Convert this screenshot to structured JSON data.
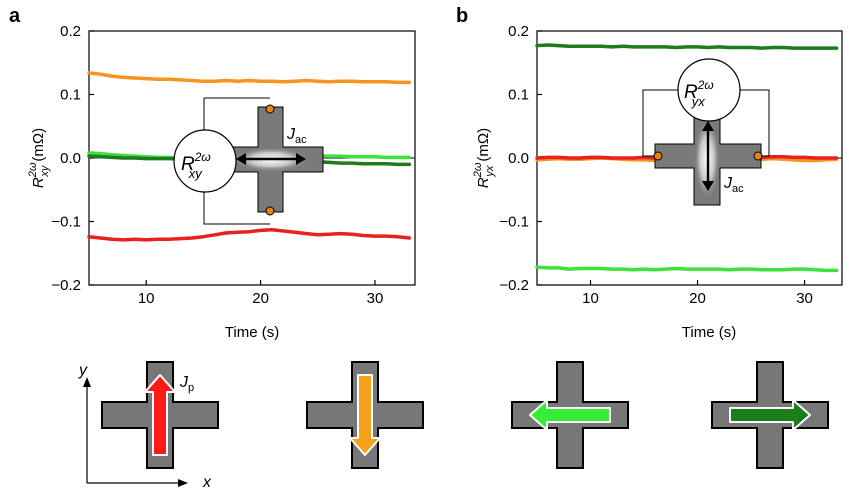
{
  "panel_letters": [
    "a",
    "b"
  ],
  "chart_data": [
    {
      "type": "line",
      "panel": "a",
      "xlabel": "Time (s)",
      "ylabel_main": "R",
      "ylabel_sup": "2ω",
      "ylabel_sub": "xy",
      "ylabel_unit": "(mΩ)",
      "xlim": [
        5,
        33.5
      ],
      "ylim": [
        -0.2,
        0.2
      ],
      "xticks": [
        10,
        20,
        30
      ],
      "yticks": [
        -0.2,
        -0.1,
        0.0,
        0.1,
        0.2
      ],
      "ytick_labels": [
        "−0.2",
        "−0.1",
        "0.0",
        "0.1",
        "0.2"
      ],
      "zero_line": true,
      "inset": {
        "meter_main": "R",
        "meter_sup": "2ω",
        "meter_sub": "xy",
        "current_label_main": "J",
        "current_label_sub": "ac",
        "current_direction": "horizontal"
      },
      "series": [
        {
          "color": "#f7941d",
          "x": [
            5,
            6,
            7,
            8,
            9,
            10,
            11,
            12,
            13,
            14,
            15,
            16,
            17,
            18,
            19,
            20,
            21,
            22,
            23,
            24,
            25,
            26,
            27,
            28,
            29,
            30,
            31,
            32,
            33
          ],
          "values": [
            0.134,
            0.132,
            0.129,
            0.127,
            0.126,
            0.125,
            0.124,
            0.124,
            0.123,
            0.122,
            0.121,
            0.121,
            0.122,
            0.121,
            0.122,
            0.121,
            0.121,
            0.12,
            0.121,
            0.122,
            0.121,
            0.12,
            0.121,
            0.121,
            0.12,
            0.12,
            0.12,
            0.119,
            0.119
          ]
        },
        {
          "color": "#3de03d",
          "x": [
            5,
            6,
            7,
            8,
            9,
            10,
            11,
            12,
            13,
            14,
            15,
            16,
            17,
            18,
            19,
            20,
            21,
            22,
            23,
            24,
            25,
            26,
            27,
            28,
            29,
            30,
            31,
            32,
            33
          ],
          "values": [
            0.008,
            0.007,
            0.005,
            0.004,
            0.003,
            0.002,
            0.001,
            0.001,
            0.0,
            0.0,
            -0.001,
            0.0,
            0.001,
            0.0,
            0.0,
            0.001,
            0.002,
            0.003,
            0.004,
            0.004,
            0.003,
            0.003,
            0.003,
            0.002,
            0.002,
            0.002,
            0.001,
            0.001,
            0.001
          ]
        },
        {
          "color": "#1e7b1e",
          "x": [
            5,
            6,
            7,
            8,
            9,
            10,
            11,
            12,
            13,
            14,
            15,
            16,
            17,
            18,
            19,
            20,
            21,
            22,
            23,
            24,
            25,
            26,
            27,
            28,
            29,
            30,
            31,
            32,
            33
          ],
          "values": [
            0.003,
            0.002,
            0.001,
            0.0,
            0.0,
            -0.001,
            -0.001,
            -0.001,
            -0.002,
            -0.002,
            -0.002,
            -0.002,
            -0.003,
            -0.003,
            -0.003,
            -0.002,
            -0.003,
            -0.004,
            -0.004,
            -0.005,
            -0.006,
            -0.007,
            -0.008,
            -0.008,
            -0.009,
            -0.009,
            -0.009,
            -0.01,
            -0.01
          ]
        },
        {
          "color": "#e8201e",
          "x": [
            5,
            6,
            7,
            8,
            9,
            10,
            11,
            12,
            13,
            14,
            15,
            16,
            17,
            18,
            19,
            20,
            21,
            22,
            23,
            24,
            25,
            26,
            27,
            28,
            29,
            30,
            31,
            32,
            33
          ],
          "values": [
            -0.124,
            -0.126,
            -0.128,
            -0.129,
            -0.128,
            -0.129,
            -0.128,
            -0.128,
            -0.127,
            -0.126,
            -0.124,
            -0.121,
            -0.118,
            -0.117,
            -0.116,
            -0.114,
            -0.113,
            -0.115,
            -0.117,
            -0.119,
            -0.121,
            -0.12,
            -0.119,
            -0.12,
            -0.122,
            -0.123,
            -0.123,
            -0.124,
            -0.126
          ]
        }
      ]
    },
    {
      "type": "line",
      "panel": "b",
      "xlabel": "Time (s)",
      "ylabel_main": "R",
      "ylabel_sup": "2ω",
      "ylabel_sub": "yx",
      "ylabel_unit": "(mΩ)",
      "xlim": [
        5,
        33.5
      ],
      "ylim": [
        -0.2,
        0.2
      ],
      "xticks": [
        10,
        20,
        30
      ],
      "yticks": [
        -0.2,
        -0.1,
        0.0,
        0.1,
        0.2
      ],
      "ytick_labels": [
        "−0.2",
        "−0.1",
        "0.0",
        "0.1",
        "0.2"
      ],
      "zero_line": true,
      "inset": {
        "meter_main": "R",
        "meter_sup": "2ω",
        "meter_sub": "yx",
        "current_label_main": "J",
        "current_label_sub": "ac",
        "current_direction": "vertical"
      },
      "series": [
        {
          "color": "#1e7b1e",
          "x": [
            5,
            6,
            7,
            8,
            9,
            10,
            11,
            12,
            13,
            14,
            15,
            16,
            17,
            18,
            19,
            20,
            21,
            22,
            23,
            24,
            25,
            26,
            27,
            28,
            29,
            30,
            31,
            32,
            33
          ],
          "values": [
            0.177,
            0.178,
            0.177,
            0.176,
            0.176,
            0.176,
            0.176,
            0.175,
            0.176,
            0.175,
            0.175,
            0.175,
            0.175,
            0.174,
            0.175,
            0.175,
            0.174,
            0.175,
            0.174,
            0.174,
            0.174,
            0.173,
            0.174,
            0.174,
            0.173,
            0.173,
            0.173,
            0.173,
            0.173
          ]
        },
        {
          "color": "#f7941d",
          "x": [
            5,
            6,
            7,
            8,
            9,
            10,
            11,
            12,
            13,
            14,
            15,
            16,
            17,
            18,
            19,
            20,
            21,
            22,
            23,
            24,
            25,
            26,
            27,
            28,
            29,
            30,
            31,
            32,
            33
          ],
          "values": [
            -0.003,
            -0.002,
            -0.001,
            -0.002,
            -0.002,
            -0.001,
            0.0,
            -0.001,
            -0.002,
            -0.003,
            -0.003,
            -0.004,
            -0.005,
            -0.006,
            -0.005,
            -0.004,
            -0.004,
            -0.005,
            -0.006,
            -0.004,
            -0.003,
            -0.002,
            -0.001,
            -0.002,
            -0.003,
            -0.004,
            -0.004,
            -0.003,
            -0.002
          ]
        },
        {
          "color": "#e8201e",
          "x": [
            5,
            6,
            7,
            8,
            9,
            10,
            11,
            12,
            13,
            14,
            15,
            16,
            17,
            18,
            19,
            20,
            21,
            22,
            23,
            24,
            25,
            26,
            27,
            28,
            29,
            30,
            31,
            32,
            33
          ],
          "values": [
            0.0,
            0.001,
            0.001,
            0.0,
            0.0,
            0.001,
            0.001,
            0.0,
            0.0,
            0.0,
            0.001,
            0.0,
            -0.001,
            -0.001,
            -0.001,
            0.0,
            0.0,
            -0.001,
            -0.001,
            -0.001,
            0.0,
            0.001,
            0.002,
            0.002,
            0.001,
            0.001,
            0.0,
            0.0,
            0.0
          ]
        },
        {
          "color": "#3de03d",
          "x": [
            5,
            6,
            7,
            8,
            9,
            10,
            11,
            12,
            13,
            14,
            15,
            16,
            17,
            18,
            19,
            20,
            21,
            22,
            23,
            24,
            25,
            26,
            27,
            28,
            29,
            30,
            31,
            32,
            33
          ],
          "values": [
            -0.172,
            -0.173,
            -0.173,
            -0.175,
            -0.174,
            -0.174,
            -0.174,
            -0.175,
            -0.175,
            -0.176,
            -0.175,
            -0.176,
            -0.175,
            -0.174,
            -0.175,
            -0.175,
            -0.175,
            -0.175,
            -0.176,
            -0.175,
            -0.175,
            -0.176,
            -0.176,
            -0.176,
            -0.175,
            -0.175,
            -0.176,
            -0.177,
            -0.177
          ]
        }
      ]
    }
  ],
  "schematic": {
    "y_axis_label": "y",
    "x_axis_label": "x",
    "pulse_label_main": "J",
    "pulse_label_sub": "p",
    "crosses": [
      {
        "arrow_color": "#ff1a1a",
        "direction": "up"
      },
      {
        "arrow_color": "#f7a11a",
        "direction": "down"
      },
      {
        "arrow_color": "#33ee33",
        "direction": "left"
      },
      {
        "arrow_color": "#1a7f1a",
        "direction": "right"
      }
    ]
  }
}
